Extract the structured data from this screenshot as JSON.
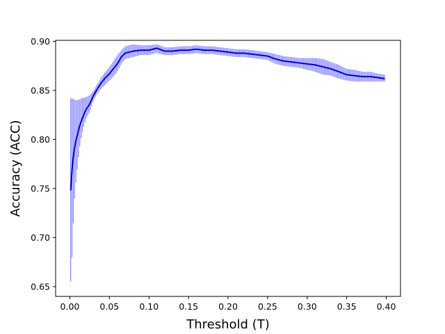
{
  "chart_data": {
    "type": "line",
    "title": "",
    "xlabel": "Threshold (T)",
    "ylabel": "Accuracy (ACC)",
    "xlim": [
      -0.018,
      0.418
    ],
    "ylim": [
      0.64,
      0.901
    ],
    "x_ticks": [
      0.0,
      0.05,
      0.1,
      0.15,
      0.2,
      0.25,
      0.3,
      0.35,
      0.4
    ],
    "x_tick_labels": [
      "0.00",
      "0.05",
      "0.10",
      "0.15",
      "0.20",
      "0.25",
      "0.30",
      "0.35",
      "0.40"
    ],
    "y_ticks": [
      0.65,
      0.7,
      0.75,
      0.8,
      0.85,
      0.9
    ],
    "y_tick_labels": [
      "0.65",
      "0.70",
      "0.75",
      "0.80",
      "0.85",
      "0.90"
    ],
    "grid": false,
    "legend": "none",
    "series": [
      {
        "color": "#0000cc",
        "band_color": "#6b6bff",
        "x": [
          0.001,
          0.003,
          0.005,
          0.008,
          0.01,
          0.012,
          0.015,
          0.02,
          0.025,
          0.03,
          0.035,
          0.04,
          0.045,
          0.05,
          0.055,
          0.06,
          0.065,
          0.07,
          0.075,
          0.08,
          0.09,
          0.1,
          0.11,
          0.12,
          0.13,
          0.14,
          0.15,
          0.16,
          0.17,
          0.18,
          0.19,
          0.2,
          0.21,
          0.22,
          0.23,
          0.24,
          0.25,
          0.26,
          0.27,
          0.28,
          0.29,
          0.3,
          0.31,
          0.32,
          0.33,
          0.34,
          0.35,
          0.36,
          0.37,
          0.38,
          0.39,
          0.398
        ],
        "y": [
          0.748,
          0.772,
          0.787,
          0.8,
          0.806,
          0.813,
          0.82,
          0.83,
          0.836,
          0.845,
          0.852,
          0.858,
          0.863,
          0.867,
          0.872,
          0.877,
          0.884,
          0.888,
          0.889,
          0.89,
          0.891,
          0.891,
          0.893,
          0.89,
          0.89,
          0.891,
          0.891,
          0.892,
          0.891,
          0.891,
          0.89,
          0.889,
          0.888,
          0.888,
          0.887,
          0.886,
          0.885,
          0.882,
          0.88,
          0.879,
          0.878,
          0.877,
          0.876,
          0.874,
          0.872,
          0.869,
          0.866,
          0.865,
          0.864,
          0.864,
          0.863,
          0.862
        ],
        "y_low": [
          0.655,
          0.685,
          0.73,
          0.76,
          0.775,
          0.79,
          0.805,
          0.82,
          0.828,
          0.84,
          0.847,
          0.852,
          0.856,
          0.86,
          0.864,
          0.869,
          0.877,
          0.882,
          0.883,
          0.884,
          0.886,
          0.886,
          0.888,
          0.886,
          0.886,
          0.887,
          0.887,
          0.888,
          0.887,
          0.887,
          0.886,
          0.885,
          0.884,
          0.884,
          0.883,
          0.882,
          0.881,
          0.877,
          0.875,
          0.874,
          0.873,
          0.871,
          0.869,
          0.866,
          0.865,
          0.862,
          0.86,
          0.859,
          0.859,
          0.859,
          0.859,
          0.859
        ],
        "y_high": [
          0.842,
          0.842,
          0.841,
          0.84,
          0.84,
          0.841,
          0.842,
          0.843,
          0.845,
          0.85,
          0.857,
          0.864,
          0.869,
          0.874,
          0.88,
          0.886,
          0.891,
          0.895,
          0.896,
          0.897,
          0.896,
          0.896,
          0.897,
          0.894,
          0.894,
          0.895,
          0.895,
          0.896,
          0.895,
          0.895,
          0.894,
          0.893,
          0.892,
          0.892,
          0.891,
          0.89,
          0.889,
          0.887,
          0.885,
          0.884,
          0.883,
          0.883,
          0.883,
          0.882,
          0.879,
          0.876,
          0.872,
          0.871,
          0.869,
          0.869,
          0.867,
          0.866
        ]
      }
    ]
  }
}
